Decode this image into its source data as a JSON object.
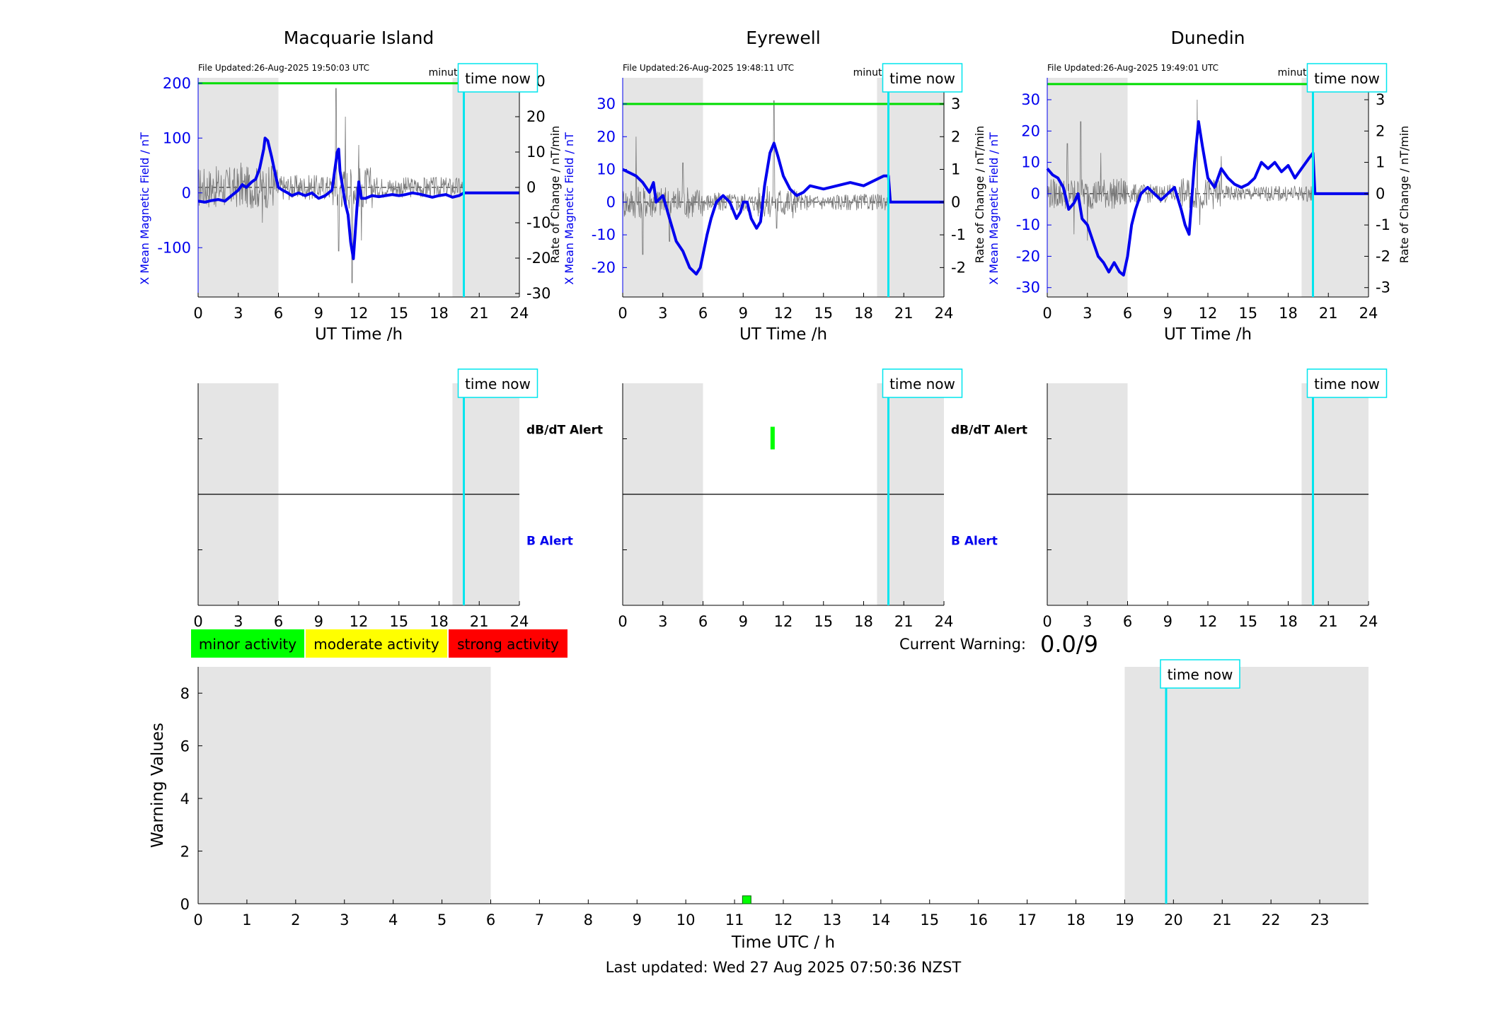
{
  "colors": {
    "b_trace": "#0000ee",
    "rate_trace": "#777777",
    "threshold": "#00dd00",
    "time_now": "#00e5ee",
    "shade": "#e5e5e5",
    "minor": "#00ff00",
    "moderate": "#ffff00",
    "strong": "#ff0000",
    "b_axis_text": "#0000ee"
  },
  "common": {
    "time_now_label": "time now",
    "minute_resolution": "minute resolution",
    "x_label": "UT Time /h",
    "time_now_h": 19.85,
    "shade_ranges": [
      [
        0,
        6
      ],
      [
        19,
        24
      ]
    ],
    "x_ticks": [
      0,
      3,
      6,
      9,
      12,
      15,
      18,
      21,
      24
    ]
  },
  "alert_labels": {
    "dbdt": "dB/dT Alert",
    "b": "B Alert"
  },
  "legend": {
    "minor": "minor activity",
    "moderate": "moderate activity",
    "strong": "strong activity"
  },
  "current_warning": {
    "label": "Current Warning:",
    "value": "0.0/9"
  },
  "footer": {
    "last_updated": "Last updated: Wed 27 Aug 2025 07:50:36 NZST"
  },
  "chart_data": [
    {
      "type": "line",
      "title": "Macquarie Island",
      "file_updated": "File Updated:26-Aug-2025 19:50:03 UTC",
      "ylabel": "X Mean Magnetic Field / nT",
      "y2label": "Rate of Change / nT/min",
      "xlabel": "UT Time /h",
      "xlim": [
        0,
        24
      ],
      "ylim": [
        -190,
        210
      ],
      "y_ticks": [
        -100,
        0,
        100,
        200
      ],
      "y2lim": [
        -31,
        31
      ],
      "y2_ticks": [
        -30,
        -20,
        -10,
        0,
        10,
        20,
        30
      ],
      "threshold": 200,
      "series": [
        {
          "x": [
            0,
            0.5,
            1,
            1.5,
            2,
            2.5,
            3,
            3.3,
            3.6,
            4,
            4.3,
            4.6,
            4.9,
            5,
            5.2,
            5.5,
            5.8,
            6,
            6.3,
            6.7,
            7,
            7.5,
            8,
            8.5,
            9,
            9.5,
            10,
            10.2,
            10.4,
            10.5,
            10.6,
            10.8,
            11,
            11.2,
            11.4,
            11.6,
            11.8,
            12,
            12.2,
            12.5,
            13,
            13.5,
            14,
            14.5,
            15,
            15.5,
            16,
            16.5,
            17,
            17.5,
            18,
            18.5,
            19,
            19.5,
            19.85,
            20,
            22,
            24
          ],
          "y": [
            -15,
            -17,
            -14,
            -12,
            -15,
            -5,
            5,
            15,
            10,
            20,
            25,
            45,
            80,
            100,
            95,
            65,
            30,
            10,
            5,
            0,
            -5,
            0,
            -5,
            0,
            -10,
            -5,
            5,
            40,
            75,
            80,
            40,
            10,
            -20,
            -40,
            -90,
            -120,
            -50,
            20,
            -10,
            -10,
            -5,
            -7,
            -5,
            -3,
            -5,
            -3,
            0,
            -2,
            -5,
            -8,
            -5,
            -3,
            -8,
            -5,
            0,
            0,
            0,
            0
          ]
        }
      ],
      "rate_amp": 6,
      "rate_spikes": [
        [
          10.3,
          28
        ],
        [
          10.5,
          -18
        ],
        [
          11.0,
          20
        ],
        [
          11.5,
          -27
        ],
        [
          12.0,
          12
        ],
        [
          12.2,
          -15
        ],
        [
          4.8,
          -10
        ],
        [
          3.2,
          7
        ],
        [
          5.5,
          6
        ]
      ]
    },
    {
      "type": "line",
      "title": "Eyrewell",
      "file_updated": "File Updated:26-Aug-2025 19:48:11 UTC",
      "ylabel": "X Mean Magnetic Field / nT",
      "y2label": "Rate of Change / nT/min",
      "xlabel": "UT Time /h",
      "xlim": [
        0,
        24
      ],
      "ylim": [
        -29,
        38
      ],
      "y_ticks": [
        -20,
        -10,
        0,
        10,
        20,
        30
      ],
      "y2lim": [
        -2.9,
        3.8
      ],
      "y2_ticks": [
        -2,
        -1,
        0,
        1,
        2,
        3
      ],
      "threshold": 30,
      "series": [
        {
          "x": [
            0,
            0.5,
            1,
            1.5,
            2,
            2.3,
            2.5,
            3,
            3.5,
            4,
            4.5,
            5,
            5.5,
            5.8,
            6,
            6.3,
            6.6,
            7,
            7.5,
            8,
            8.5,
            8.8,
            9,
            9.3,
            9.6,
            10,
            10.3,
            10.6,
            11,
            11.3,
            11.6,
            12,
            12.5,
            13,
            13.5,
            14,
            15,
            16,
            17,
            18,
            19,
            19.5,
            19.85,
            20,
            22,
            24
          ],
          "y": [
            10,
            9,
            8,
            6,
            3,
            6,
            0,
            2,
            -5,
            -12,
            -15,
            -20,
            -22,
            -20,
            -16,
            -10,
            -5,
            0,
            2,
            0,
            -5,
            -3,
            0,
            0,
            -5,
            -8,
            -6,
            5,
            15,
            18,
            14,
            8,
            4,
            2,
            3,
            5,
            4,
            5,
            6,
            5,
            7,
            8,
            8,
            0,
            0,
            0
          ]
        }
      ],
      "rate_amp": 0.5,
      "rate_spikes": [
        [
          1.0,
          2.0
        ],
        [
          1.5,
          -1.6
        ],
        [
          11.3,
          3.1
        ],
        [
          11.5,
          -0.8
        ],
        [
          3.5,
          -1.2
        ],
        [
          4.5,
          1.2
        ]
      ]
    },
    {
      "type": "line",
      "title": "Dunedin",
      "file_updated": "File Updated:26-Aug-2025 19:49:01 UTC",
      "ylabel": "X Mean Magnetic Field / nT",
      "y2label": "Rate of Change / nT/min",
      "xlabel": "UT Time /h",
      "xlim": [
        0,
        24
      ],
      "ylim": [
        -33,
        37
      ],
      "y_ticks": [
        -30,
        -20,
        -10,
        0,
        10,
        20,
        30
      ],
      "y2lim": [
        -3.3,
        3.7
      ],
      "y2_ticks": [
        -3,
        -2,
        -1,
        0,
        1,
        2,
        3
      ],
      "threshold": 35,
      "series": [
        {
          "x": [
            0,
            0.4,
            0.8,
            1.2,
            1.6,
            2,
            2.3,
            2.6,
            3,
            3.4,
            3.8,
            4.2,
            4.6,
            5,
            5.4,
            5.7,
            6,
            6.3,
            6.6,
            7,
            7.5,
            8,
            8.5,
            9,
            9.5,
            10,
            10.3,
            10.6,
            11,
            11.3,
            11.6,
            12,
            12.5,
            13,
            13.5,
            14,
            14.5,
            15,
            15.5,
            16,
            16.5,
            17,
            17.5,
            18,
            18.5,
            19,
            19.5,
            19.85,
            20,
            22,
            24
          ],
          "y": [
            8,
            6,
            5,
            2,
            -5,
            -3,
            0,
            -8,
            -10,
            -15,
            -20,
            -22,
            -25,
            -22,
            -25,
            -26,
            -20,
            -10,
            -5,
            0,
            2,
            0,
            -2,
            0,
            2,
            -5,
            -10,
            -13,
            10,
            23,
            15,
            5,
            2,
            8,
            5,
            3,
            2,
            3,
            5,
            10,
            8,
            10,
            7,
            9,
            5,
            8,
            11,
            13,
            0,
            0,
            0
          ]
        }
      ],
      "rate_amp": 0.5,
      "rate_spikes": [
        [
          1.5,
          1.6
        ],
        [
          2.0,
          -1.3
        ],
        [
          2.5,
          2.3
        ],
        [
          3.0,
          -1.5
        ],
        [
          11.2,
          3.0
        ],
        [
          11.4,
          -1.0
        ],
        [
          13.0,
          1.2
        ],
        [
          4.0,
          1.3
        ]
      ]
    },
    {
      "type": "alert",
      "station": "Macquarie Island",
      "xlim": [
        0,
        24
      ],
      "dbdt_marks": [],
      "b_marks": []
    },
    {
      "type": "alert",
      "station": "Eyrewell",
      "xlim": [
        0,
        24
      ],
      "dbdt_marks": [
        11.2
      ],
      "b_marks": []
    },
    {
      "type": "alert",
      "station": "Dunedin",
      "xlim": [
        0,
        24
      ],
      "dbdt_marks": [],
      "b_marks": []
    },
    {
      "type": "bar",
      "xlabel": "Time UTC / h",
      "ylabel": "Warning Values",
      "xlim": [
        0,
        24
      ],
      "ylim": [
        0,
        9
      ],
      "x_ticks": [
        0,
        1,
        2,
        3,
        4,
        5,
        6,
        7,
        8,
        9,
        10,
        11,
        12,
        13,
        14,
        15,
        16,
        17,
        18,
        19,
        20,
        21,
        22,
        23
      ],
      "y_ticks": [
        0,
        2,
        4,
        6,
        8
      ],
      "shade_ranges": [
        [
          0,
          6
        ],
        [
          19,
          24
        ]
      ],
      "time_now_h": 19.85,
      "bars": [
        {
          "x": 11.25,
          "value": 0.3,
          "level": "minor"
        }
      ]
    }
  ]
}
